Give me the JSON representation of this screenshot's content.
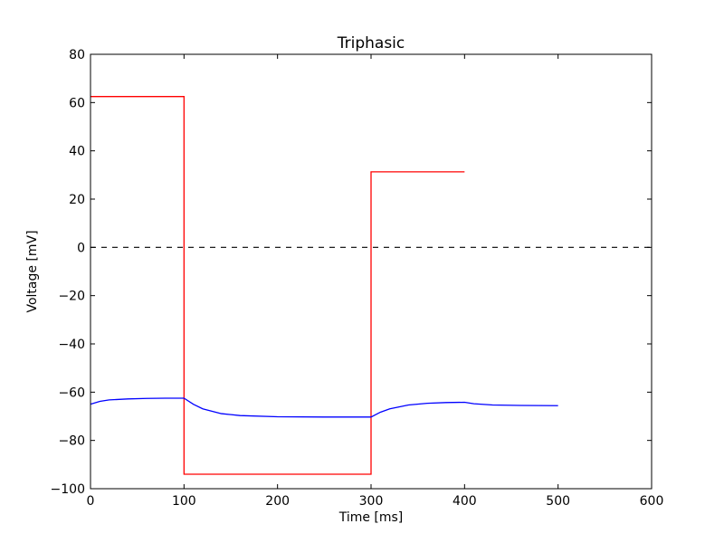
{
  "chart_data": {
    "type": "line",
    "title": "Triphasic",
    "xlabel": "Time [ms]",
    "ylabel": "Voltage [mV]",
    "xlim": [
      0,
      600
    ],
    "ylim": [
      -100,
      80
    ],
    "xticks": [
      0,
      100,
      200,
      300,
      400,
      500,
      600
    ],
    "yticks": [
      -100,
      -80,
      -60,
      -40,
      -20,
      0,
      20,
      40,
      60,
      80
    ],
    "grid": false,
    "legend": "none",
    "reference_line": {
      "y": 0,
      "color": "#000000",
      "style": "dashed"
    },
    "series": [
      {
        "color": "#ff0000",
        "step": true,
        "x": [
          0,
          100,
          100,
          300,
          300,
          400
        ],
        "y": [
          62.5,
          62.5,
          -94,
          -94,
          31.3,
          31.3
        ]
      },
      {
        "color": "#0000ff",
        "step": false,
        "x": [
          0,
          10,
          20,
          40,
          60,
          80,
          100,
          110,
          120,
          140,
          160,
          200,
          250,
          300,
          310,
          320,
          340,
          360,
          380,
          400,
          410,
          430,
          460,
          500
        ],
        "y": [
          -65.0,
          -63.8,
          -63.2,
          -62.8,
          -62.6,
          -62.5,
          -62.5,
          -65.0,
          -66.9,
          -68.9,
          -69.7,
          -70.2,
          -70.3,
          -70.3,
          -68.3,
          -66.9,
          -65.3,
          -64.6,
          -64.3,
          -64.2,
          -64.8,
          -65.3,
          -65.5,
          -65.6
        ]
      }
    ]
  }
}
